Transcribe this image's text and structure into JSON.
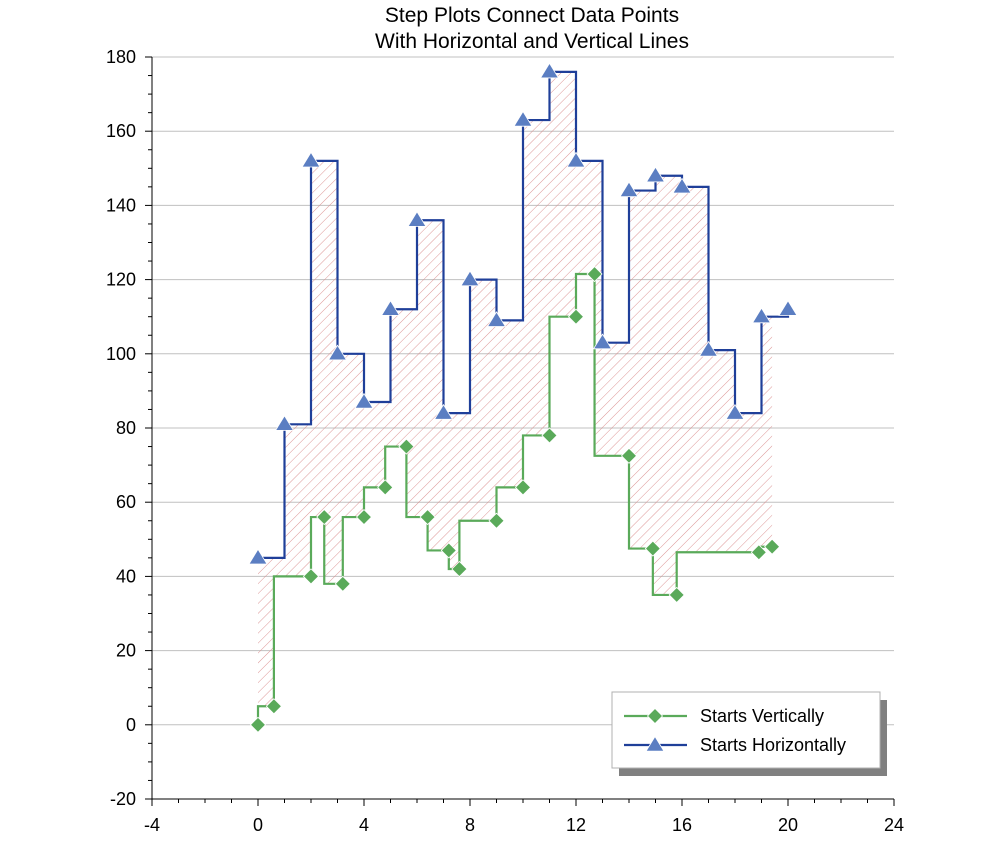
{
  "chart_data": {
    "type": "line",
    "title": [
      "Step Plots Connect Data Points",
      "With Horizontal and Vertical Lines"
    ],
    "xlim": [
      -4,
      24
    ],
    "ylim": [
      -20,
      180
    ],
    "x_ticks": [
      -4,
      0,
      4,
      8,
      12,
      16,
      20,
      24
    ],
    "y_ticks": [
      -20,
      0,
      20,
      40,
      60,
      80,
      100,
      120,
      140,
      160,
      180
    ],
    "grid": "horizontal",
    "legend_position": "bottom-right",
    "fill_between_series": true,
    "colors": {
      "vertical": "#5aaa5a",
      "horizontal": "#1f3f99",
      "marker_triangle": "#5b7ec2",
      "hatch": "#d98b8b",
      "grid": "#c0c0c0"
    },
    "series": [
      {
        "name": "Starts Vertically",
        "step": "vertical-first",
        "marker": "diamond",
        "x": [
          0,
          0.6,
          2.0,
          2.5,
          3.2,
          4.0,
          4.8,
          5.6,
          6.4,
          7.2,
          7.6,
          9.0,
          10.0,
          11.0,
          12.0,
          12.7,
          14.0,
          14.9,
          15.8,
          18.9,
          19.4
        ],
        "y": [
          0,
          5,
          40,
          56,
          38,
          56,
          64,
          75,
          56,
          47,
          42,
          55,
          64,
          78,
          110,
          121.5,
          72.5,
          47.5,
          35,
          46.5,
          48
        ]
      },
      {
        "name": "Starts Horizontally",
        "step": "horizontal-first",
        "marker": "triangle",
        "x": [
          0,
          1,
          2,
          3,
          4,
          5,
          6,
          7,
          8,
          9,
          10,
          11,
          12,
          13,
          14,
          15,
          16,
          17,
          18,
          19,
          20
        ],
        "y": [
          45,
          81,
          152,
          100,
          87,
          112,
          136,
          84,
          120,
          109,
          163,
          176,
          152,
          103,
          144,
          148,
          145,
          101,
          84,
          110,
          112
        ]
      }
    ]
  }
}
